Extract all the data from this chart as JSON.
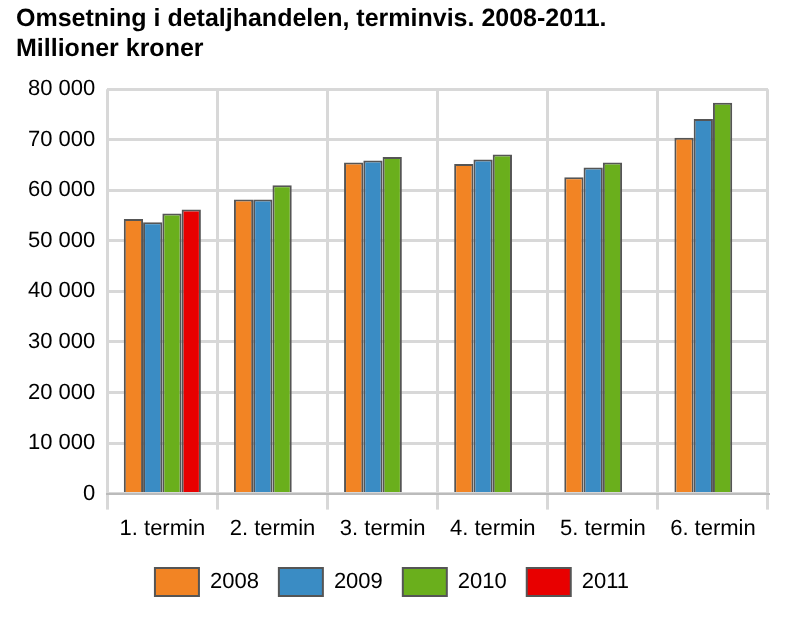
{
  "chart_data": {
    "type": "bar",
    "title": "Omsetning i detaljhandelen, terminvis.  2008-2011.",
    "subtitle": "Millioner kroner",
    "categories": [
      "1. termin",
      "2. termin",
      "3. termin",
      "4. termin",
      "5. termin",
      "6. termin"
    ],
    "series": [
      {
        "name": "2008",
        "color": "#f28424",
        "values": [
          54300,
          58200,
          65500,
          65200,
          62600,
          70400
        ]
      },
      {
        "name": "2009",
        "color": "#3a8cc4",
        "values": [
          53700,
          58200,
          65900,
          66100,
          64500,
          74100
        ]
      },
      {
        "name": "2010",
        "color": "#6aaf1c",
        "values": [
          55400,
          61000,
          66600,
          67100,
          65500,
          77300
        ]
      },
      {
        "name": "2011",
        "color": "#e80000",
        "values": [
          56200,
          null,
          null,
          null,
          null,
          null
        ]
      }
    ],
    "ylim": [
      0,
      80000
    ],
    "yticks": [
      {
        "value": 0,
        "label": "0"
      },
      {
        "value": 10000,
        "label": "10 000"
      },
      {
        "value": 20000,
        "label": "20 000"
      },
      {
        "value": 30000,
        "label": "30 000"
      },
      {
        "value": 40000,
        "label": "40 000"
      },
      {
        "value": 50000,
        "label": "50 000"
      },
      {
        "value": 60000,
        "label": "60 000"
      },
      {
        "value": 70000,
        "label": "70 000"
      },
      {
        "value": 80000,
        "label": "80 000"
      }
    ],
    "grid": true,
    "legend": "bottom"
  }
}
